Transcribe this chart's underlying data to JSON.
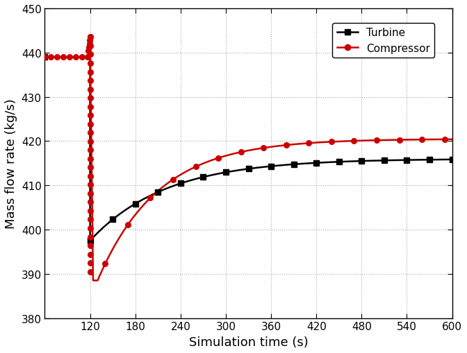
{
  "xlabel": "Simulation time (s)",
  "ylabel": "Mass flow rate (kg/s)",
  "xlim": [
    60,
    600
  ],
  "ylim": [
    380,
    450
  ],
  "xticks": [
    120,
    180,
    240,
    300,
    360,
    420,
    480,
    540,
    600
  ],
  "yticks": [
    380,
    390,
    400,
    410,
    420,
    430,
    440,
    450
  ],
  "turbine_color": "#000000",
  "compressor_color": "#cc0000",
  "turbine_label": "Turbine",
  "compressor_label": "Compressor",
  "grid_color": "#aaaaaa",
  "grid_linestyle": ":",
  "turbine_init_value": 439.0,
  "turbine_min_value": 397.5,
  "turbine_final_value": 416.0,
  "compressor_spike_value": 443.5,
  "compressor_min_value": 388.5,
  "compressor_final_value": 420.5,
  "t_transition": 120,
  "t_start": 60,
  "t_end": 600,
  "tau_turbine": 100.0,
  "tau_compressor": 80.0,
  "figsize": [
    6.72,
    5.1
  ],
  "dpi": 100
}
